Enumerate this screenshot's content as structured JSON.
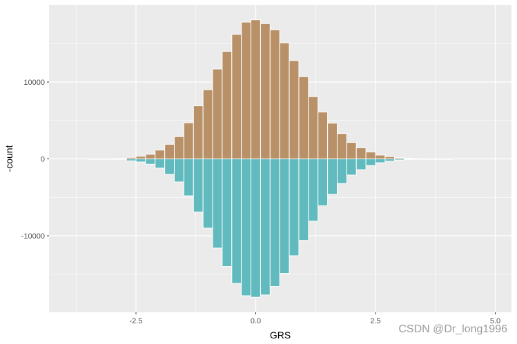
{
  "chart_data": {
    "type": "bar",
    "subtype": "mirrored histogram",
    "title": "",
    "xlabel": "GRS",
    "ylabel": "-count",
    "xlim": [
      -4.25,
      5.3
    ],
    "ylim": [
      -20000,
      20000
    ],
    "x_ticks": [
      -2.5,
      0.0,
      2.5,
      5.0
    ],
    "x_tick_labels": [
      "-2.5",
      "0.0",
      "2.5",
      "5.0"
    ],
    "y_ticks": [
      -10000,
      0,
      10000
    ],
    "y_tick_labels": [
      "-10000",
      "0",
      "10000"
    ],
    "grid": true,
    "bin_width": 0.2,
    "bin_centers": [
      -3.4,
      -3.2,
      -3.0,
      -2.8,
      -2.6,
      -2.4,
      -2.2,
      -2.0,
      -1.8,
      -1.6,
      -1.4,
      -1.2,
      -1.0,
      -0.8,
      -0.6,
      -0.4,
      -0.2,
      0.0,
      0.2,
      0.4,
      0.6,
      0.8,
      1.0,
      1.2,
      1.4,
      1.6,
      1.8,
      2.0,
      2.2,
      2.4,
      2.6,
      2.8,
      3.0,
      3.2,
      3.4,
      3.6,
      3.8,
      4.0
    ],
    "series": [
      {
        "name": "upper",
        "color": "#B99168",
        "values": [
          5,
          10,
          20,
          60,
          200,
          350,
          600,
          1150,
          1900,
          2900,
          4700,
          6900,
          9000,
          11700,
          14000,
          16200,
          17800,
          18100,
          17600,
          16800,
          15100,
          12800,
          10700,
          8100,
          6100,
          4650,
          3300,
          2150,
          1450,
          900,
          500,
          300,
          150,
          70,
          30,
          15,
          8,
          4
        ]
      },
      {
        "name": "lower",
        "color": "#60BABE",
        "values": [
          -5,
          -10,
          -20,
          -60,
          -250,
          -400,
          -700,
          -1200,
          -2000,
          -3000,
          -4800,
          -6900,
          -9000,
          -11600,
          -14000,
          -16200,
          -17800,
          -18000,
          -17700,
          -16600,
          -14900,
          -12600,
          -10600,
          -8100,
          -6100,
          -4600,
          -3200,
          -2100,
          -1400,
          -850,
          -500,
          -300,
          -150,
          -70,
          -30,
          -15,
          -8,
          -4
        ]
      }
    ],
    "panel_background": "#EBEBEB",
    "grid_color": "#FFFFFF"
  },
  "watermark": "CSDN @Dr_long1996"
}
